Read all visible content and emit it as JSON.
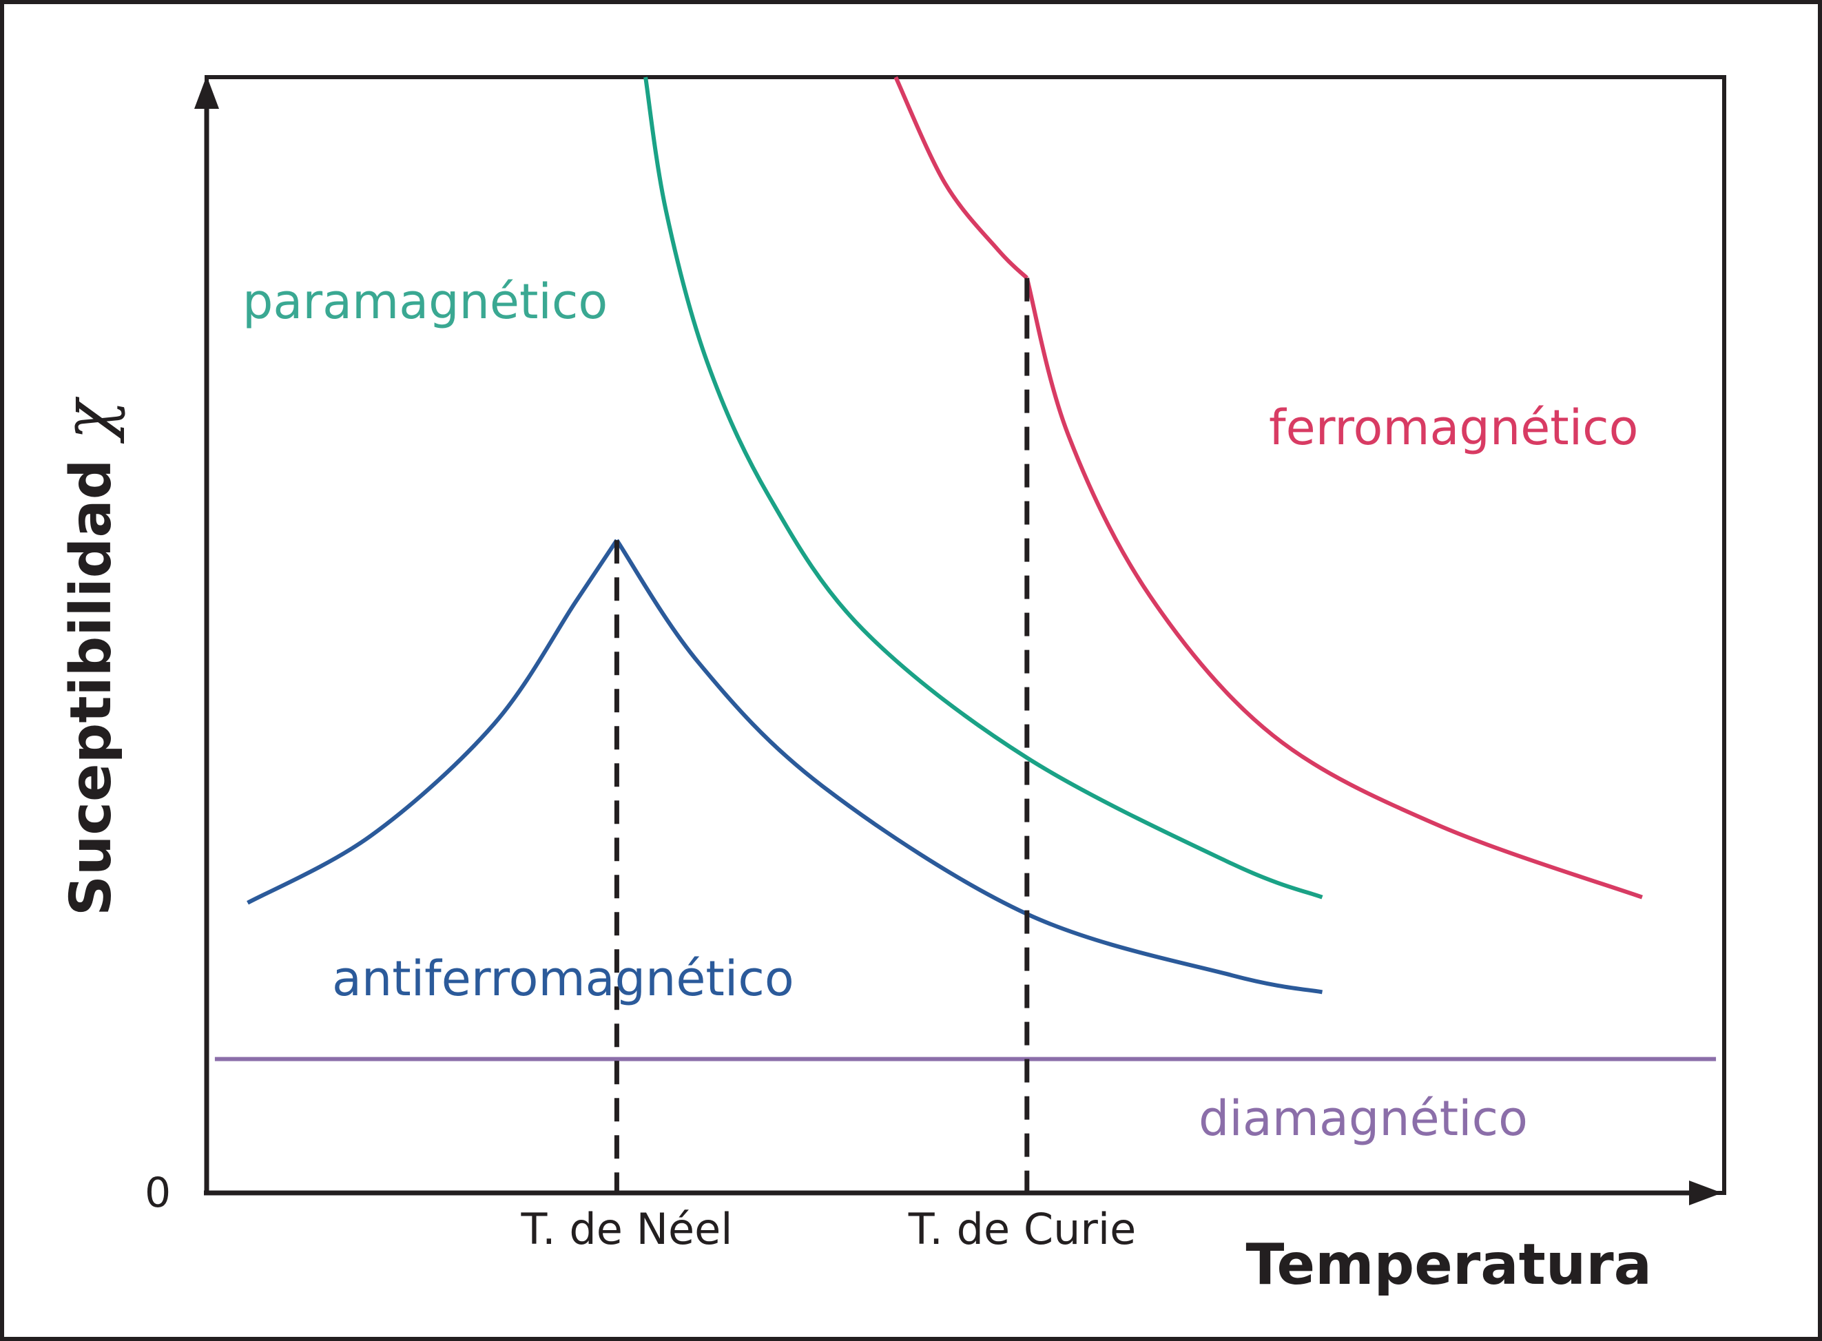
{
  "chart_data": {
    "type": "line",
    "title": "",
    "xlabel": "Temperatura",
    "ylabel": "Suceptibilidad",
    "ylabel_symbol": "χ",
    "x_ticks": [
      {
        "label": "0",
        "axis": "y",
        "value": 0
      },
      {
        "label": "T. de Néel",
        "value": 1.0
      },
      {
        "label": "T. de Curie",
        "value": 2.0
      }
    ],
    "xlim": [
      0,
      3.7
    ],
    "ylim": [
      0,
      10
    ],
    "grid": false,
    "legend": "none",
    "series": [
      {
        "name": "paramagnético",
        "color": "#1aa286",
        "x": [
          1.07,
          1.12,
          1.22,
          1.37,
          1.6,
          2.0,
          2.5,
          2.72
        ],
        "y": [
          10.0,
          8.8,
          7.45,
          6.25,
          5.05,
          3.9,
          2.95,
          2.65
        ]
      },
      {
        "name": "ferromagnético",
        "color": "#d83b63",
        "x": [
          1.68,
          1.8,
          1.93,
          2.0,
          2.1,
          2.3,
          2.6,
          3.0,
          3.5
        ],
        "y": [
          10.0,
          9.05,
          8.45,
          8.2,
          6.8,
          5.35,
          4.1,
          3.3,
          2.65
        ]
      },
      {
        "name": "antiferromagnético",
        "color": "#2b5a9a",
        "x": [
          0.1,
          0.4,
          0.7,
          0.9,
          1.0,
          1.2,
          1.5,
          2.0,
          2.5,
          2.72
        ],
        "y": [
          2.6,
          3.2,
          4.2,
          5.3,
          5.85,
          4.75,
          3.65,
          2.5,
          1.95,
          1.8
        ]
      },
      {
        "name": "diamagnético",
        "color": "#8b6ea9",
        "x": [
          0.02,
          3.68
        ],
        "y": [
          1.2,
          1.2
        ]
      }
    ],
    "vlines": [
      {
        "name": "T. de Néel",
        "x": 1.0,
        "y_top": 5.85
      },
      {
        "name": "T. de Curie",
        "x": 2.0,
        "y_top": 8.2
      }
    ]
  }
}
